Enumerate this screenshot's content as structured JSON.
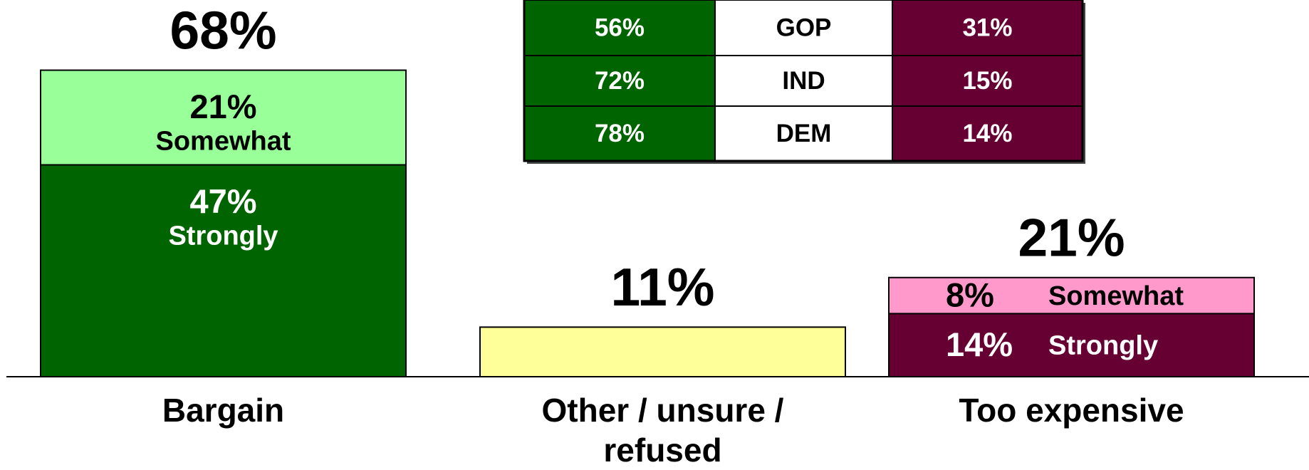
{
  "chart_data": {
    "type": "stacked_bar",
    "bars": [
      {
        "category": "Bargain",
        "total": 68,
        "total_label": "68%",
        "label_style": "stacked",
        "segments": [
          {
            "name": "Strongly",
            "value": 47,
            "value_label": "47%",
            "color": "#006400",
            "text_color": "#ffffff"
          },
          {
            "name": "Somewhat",
            "value": 21,
            "value_label": "21%",
            "color": "#99ff99",
            "text_color": "#000000"
          }
        ]
      },
      {
        "category": "Other / unsure / refused",
        "total": 11,
        "total_label": "11%",
        "color": "#ffff99"
      },
      {
        "category": "Too expensive",
        "total": 21,
        "total_label": "21%",
        "label_style": "inline",
        "segments": [
          {
            "name": "Strongly",
            "value": 14,
            "value_label": "14%",
            "color": "#660033",
            "text_color": "#ffffff"
          },
          {
            "name": "Somewhat",
            "value": 8,
            "value_label": "8%",
            "color": "#ff99cc",
            "text_color": "#000000"
          }
        ]
      }
    ]
  },
  "table": {
    "rows": [
      [
        "56%",
        "GOP",
        "31%"
      ],
      [
        "72%",
        "IND",
        "15%"
      ],
      [
        "78%",
        "DEM",
        "14%"
      ]
    ],
    "column_colors": [
      "#006400",
      "#ffffff",
      "#660033"
    ],
    "text_colors": [
      "#ffffff",
      "#000000",
      "#ffffff"
    ]
  }
}
